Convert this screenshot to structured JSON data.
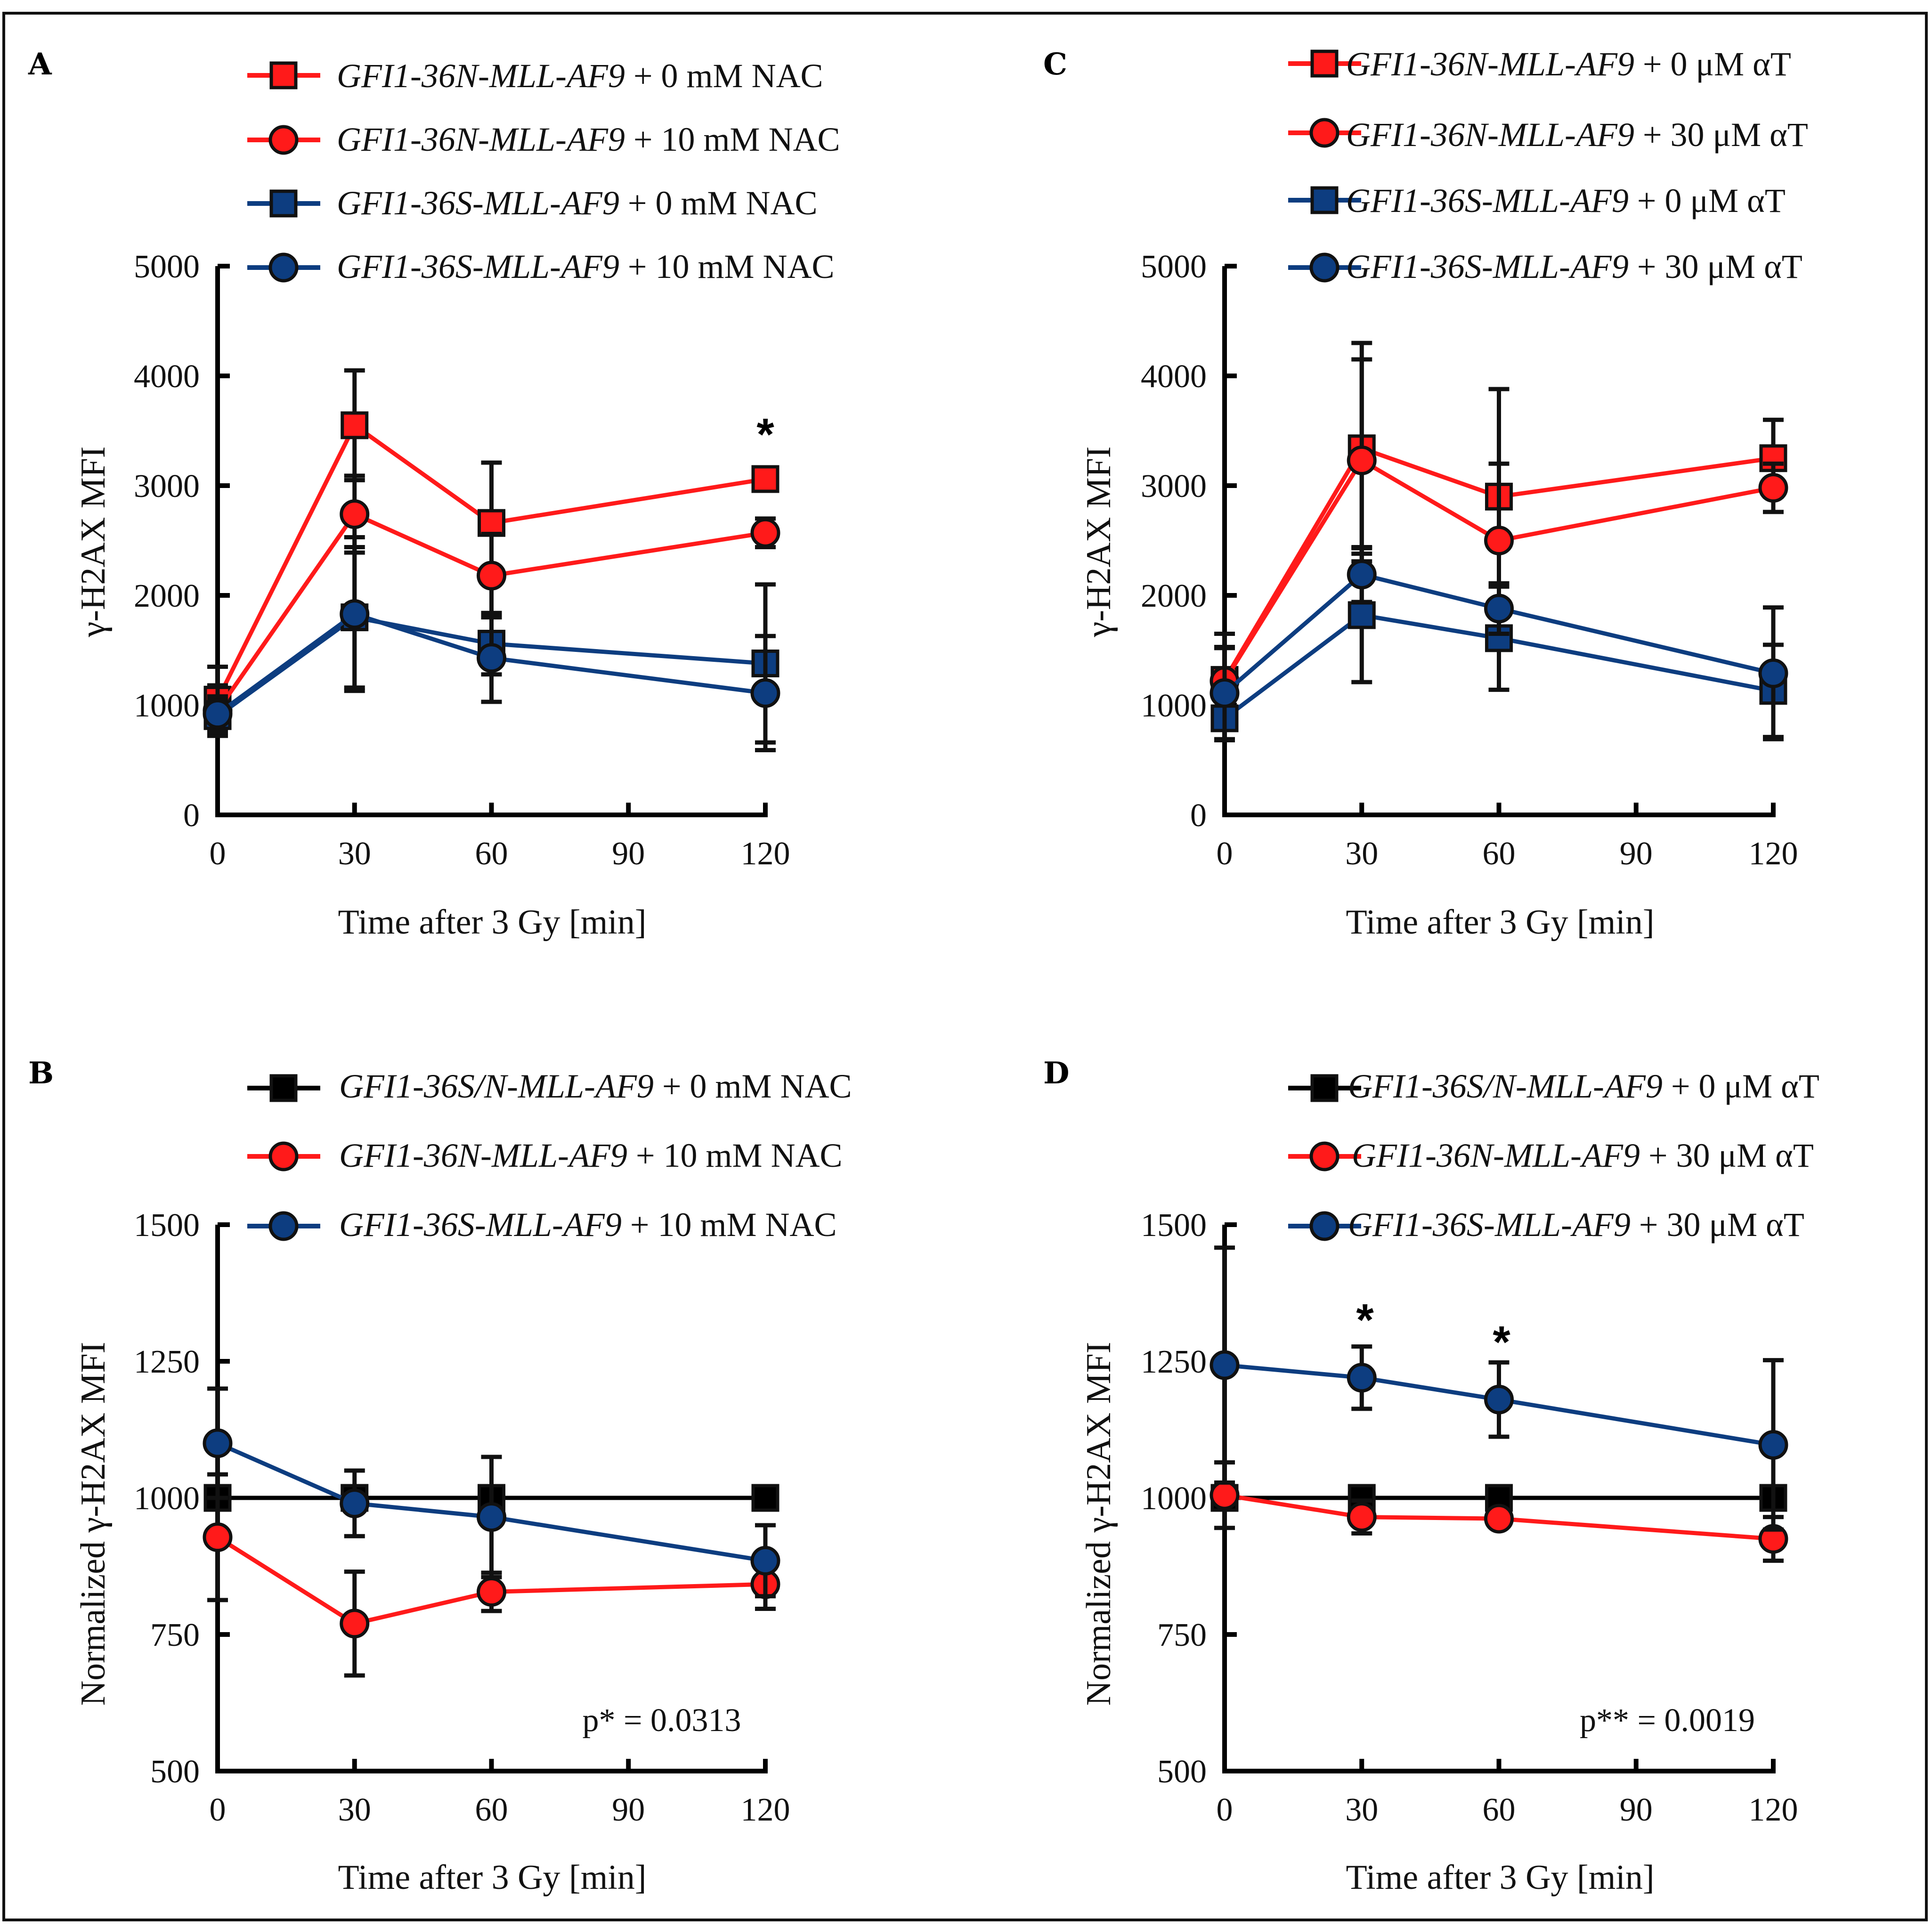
{
  "colors": {
    "red": "#ff1a1a",
    "blue": "#0d3d80",
    "black": "#000000",
    "outline": "#111111"
  },
  "chart_data": [
    {
      "panel": "A",
      "type": "line",
      "xlabel": "Time after 3 Gy [min]",
      "ylabel": "γ-H2AX MFI",
      "xlim": [
        0,
        120
      ],
      "ylim": [
        0,
        5000
      ],
      "xticks": [
        0,
        30,
        60,
        90,
        120
      ],
      "yticks": [
        0,
        1000,
        2000,
        3000,
        4000,
        5000
      ],
      "x": [
        0,
        30,
        60,
        120
      ],
      "series": [
        {
          "name": "GFI1-36N-MLL-AF9",
          "suffix": " + 0 mM NAC",
          "color": "red",
          "marker": "square",
          "values": [
            1050,
            3550,
            2660,
            3060
          ],
          "errors": [
            300,
            500,
            550,
            0
          ]
        },
        {
          "name": "GFI1-36N-MLL-AF9",
          "suffix": " + 10 mM NAC",
          "color": "red",
          "marker": "circle",
          "values": [
            950,
            2740,
            2180,
            2570
          ],
          "errors": [
            230,
            350,
            380,
            130
          ]
        },
        {
          "name": "GFI1-36S-MLL-AF9",
          "suffix": " + 0 mM NAC",
          "color": "blue",
          "marker": "square",
          "values": [
            900,
            1800,
            1560,
            1380
          ],
          "errors": [
            150,
            640,
            280,
            720
          ]
        },
        {
          "name": "GFI1-36S-MLL-AF9",
          "suffix": " + 10 mM NAC",
          "color": "blue",
          "marker": "circle",
          "values": [
            920,
            1830,
            1430,
            1110
          ],
          "errors": [
            160,
            700,
            400,
            520
          ]
        }
      ],
      "annotations": [
        {
          "text": "*",
          "x": 120,
          "y": 3350
        }
      ]
    },
    {
      "panel": "B",
      "type": "line",
      "xlabel": "Time after 3 Gy [min]",
      "ylabel": "Normalized γ-H2AX MFI",
      "xlim": [
        0,
        120
      ],
      "ylim": [
        500,
        1500
      ],
      "xticks": [
        0,
        30,
        60,
        90,
        120
      ],
      "yticks": [
        500,
        750,
        1000,
        1250,
        1500
      ],
      "x": [
        0,
        30,
        60,
        120
      ],
      "series": [
        {
          "name": "GFI1-36S/N-MLL-AF9",
          "suffix": " + 0 mM NAC",
          "color": "black",
          "marker": "square",
          "values": [
            1000,
            1000,
            1000,
            1000
          ],
          "errors": [
            0,
            0,
            0,
            0
          ]
        },
        {
          "name": "GFI1-36N-MLL-AF9",
          "suffix": " + 10 mM NAC",
          "color": "red",
          "marker": "circle",
          "values": [
            928,
            770,
            828,
            842
          ],
          "errors": [
            115,
            95,
            35,
            45
          ]
        },
        {
          "name": "GFI1-36S-MLL-AF9",
          "suffix": " + 10 mM NAC",
          "color": "blue",
          "marker": "circle",
          "values": [
            1100,
            990,
            965,
            885
          ],
          "errors": [
            100,
            60,
            110,
            65
          ]
        }
      ],
      "pvalue": "p* = 0.0313"
    },
    {
      "panel": "C",
      "type": "line",
      "xlabel": "Time after 3 Gy [min]",
      "ylabel": "γ-H2AX MFI",
      "xlim": [
        0,
        120
      ],
      "ylim": [
        0,
        5000
      ],
      "xticks": [
        0,
        30,
        60,
        90,
        120
      ],
      "yticks": [
        0,
        1000,
        2000,
        3000,
        4000,
        5000
      ],
      "x": [
        0,
        30,
        60,
        120
      ],
      "series": [
        {
          "name": "GFI1-36N-MLL-AF9",
          "suffix": " + 0 μM αT",
          "color": "red",
          "marker": "square",
          "values": [
            1230,
            3340,
            2900,
            3250
          ],
          "errors": [
            420,
            960,
            980,
            350
          ]
        },
        {
          "name": "GFI1-36N-MLL-AF9",
          "suffix": " + 30 μM αT",
          "color": "red",
          "marker": "circle",
          "values": [
            1220,
            3230,
            2500,
            2980
          ],
          "errors": [
            300,
            920,
            700,
            220
          ]
        },
        {
          "name": "GFI1-36S-MLL-AF9",
          "suffix": " + 0 μM αT",
          "color": "blue",
          "marker": "square",
          "values": [
            880,
            1820,
            1610,
            1130
          ],
          "errors": [
            200,
            610,
            470,
            420
          ]
        },
        {
          "name": "GFI1-36S-MLL-AF9",
          "suffix": " + 30 μM αT",
          "color": "blue",
          "marker": "circle",
          "values": [
            1110,
            2190,
            1880,
            1290
          ],
          "errors": [
            420,
            250,
            230,
            600
          ]
        }
      ]
    },
    {
      "panel": "D",
      "type": "line",
      "xlabel": "Time after 3 Gy [min]",
      "ylabel": "Normalized γ-H2AX MFI",
      "xlim": [
        0,
        120
      ],
      "ylim": [
        500,
        1500
      ],
      "xticks": [
        0,
        30,
        60,
        90,
        120
      ],
      "yticks": [
        500,
        750,
        1000,
        1250,
        1500
      ],
      "x": [
        0,
        30,
        60,
        120
      ],
      "series": [
        {
          "name": "GFI1-36S/N-MLL-AF9",
          "suffix": " + 0 μM αT",
          "color": "black",
          "marker": "square",
          "values": [
            1000,
            1000,
            1000,
            1000
          ],
          "errors": [
            0,
            0,
            0,
            0
          ]
        },
        {
          "name": "GFI1-36N-MLL-AF9",
          "suffix": " + 30 μM αT",
          "color": "red",
          "marker": "circle",
          "values": [
            1005,
            965,
            962,
            925
          ],
          "errors": [
            60,
            30,
            15,
            40
          ]
        },
        {
          "name": "GFI1-36S-MLL-AF9",
          "suffix": " + 30 μM αT",
          "color": "blue",
          "marker": "circle",
          "values": [
            1243,
            1220,
            1180,
            1097
          ],
          "errors": [
            215,
            57,
            68,
            155
          ]
        }
      ],
      "annotations": [
        {
          "text": "*",
          "x": 30,
          "y": 1320
        },
        {
          "text": "*",
          "x": 60,
          "y": 1285
        }
      ],
      "pvalue": "p** = 0.0019"
    }
  ]
}
